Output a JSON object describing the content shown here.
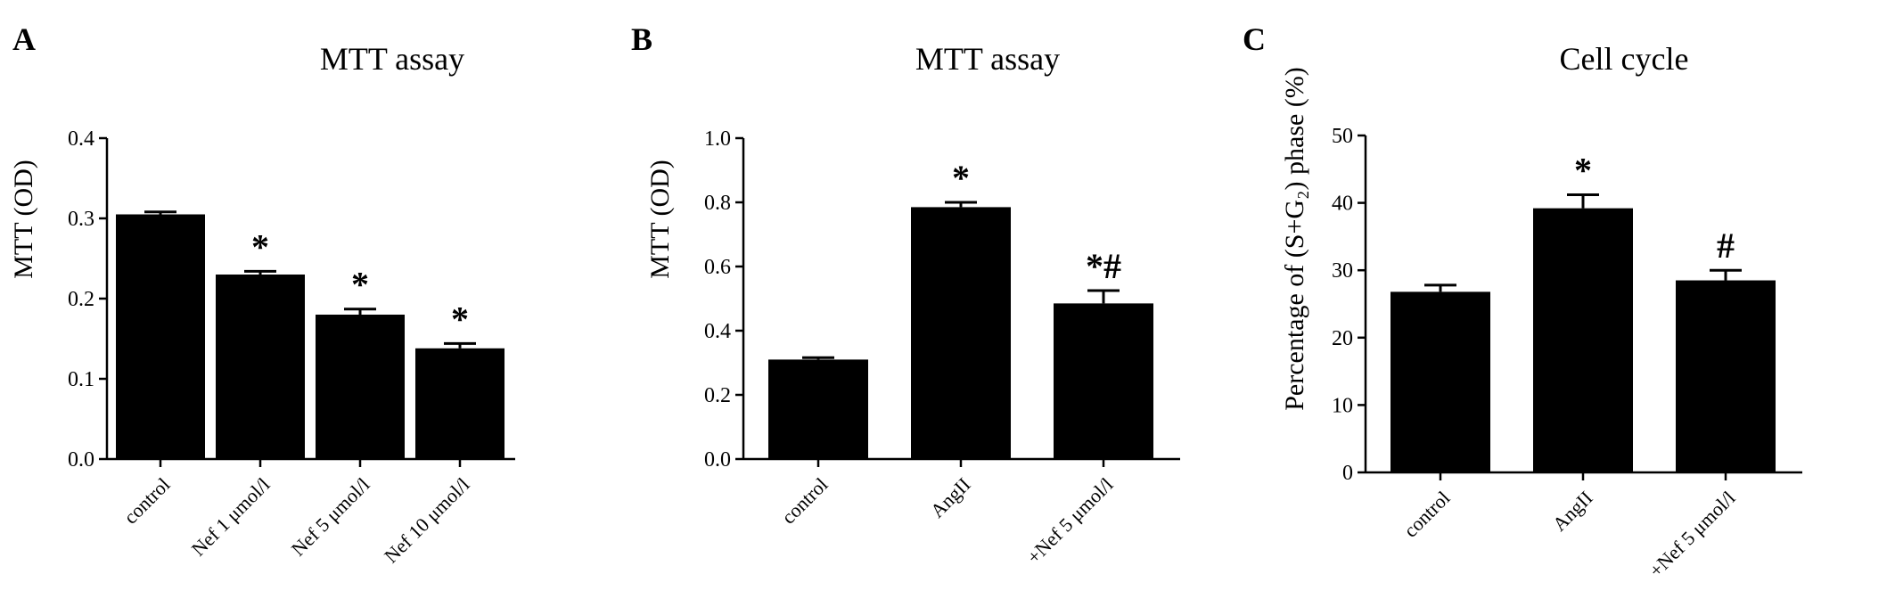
{
  "chart_data": [
    {
      "type": "bar",
      "panel_letter": "A",
      "title": "MTT assay",
      "xlabel": "",
      "ylabel": "MTT (OD)",
      "ylim": [
        0,
        0.4
      ],
      "yticks": [
        "0.0",
        "0.1",
        "0.2",
        "0.3",
        "0.4"
      ],
      "categories": [
        "control",
        "Nef 1 μmol/l",
        "Nef 5 μmol/l",
        "Nef 10 μmol/l"
      ],
      "values": [
        0.305,
        0.23,
        0.18,
        0.138
      ],
      "errors": [
        0.003,
        0.004,
        0.007,
        0.006
      ],
      "annotations": [
        "",
        "*",
        "*",
        "*"
      ],
      "bar_color": "#000000"
    },
    {
      "type": "bar",
      "panel_letter": "B",
      "title": "MTT assay",
      "xlabel": "",
      "ylabel": "MTT (OD)",
      "ylim": [
        0,
        1.0
      ],
      "yticks": [
        "0.0",
        "0.2",
        "0.4",
        "0.6",
        "0.8",
        "1.0"
      ],
      "categories": [
        "control",
        "AngII",
        "+Nef 5 μmol/l"
      ],
      "values": [
        0.31,
        0.785,
        0.485
      ],
      "errors": [
        0.006,
        0.015,
        0.04
      ],
      "annotations": [
        "",
        "*",
        "*#"
      ],
      "bar_color": "#000000"
    },
    {
      "type": "bar",
      "panel_letter": "C",
      "title": "Cell cycle",
      "xlabel": "",
      "ylabel": "Percentage of (S+G₂) phase (%)",
      "ylim": [
        0,
        50
      ],
      "yticks": [
        "0",
        "10",
        "20",
        "30",
        "40",
        "50"
      ],
      "categories": [
        "control",
        "AngII",
        "+Nef 5 μmol/l"
      ],
      "values": [
        26.8,
        39.2,
        28.5
      ],
      "errors": [
        1.0,
        2.0,
        1.5
      ],
      "annotations": [
        "",
        "*",
        "#"
      ],
      "bar_color": "#000000"
    }
  ]
}
